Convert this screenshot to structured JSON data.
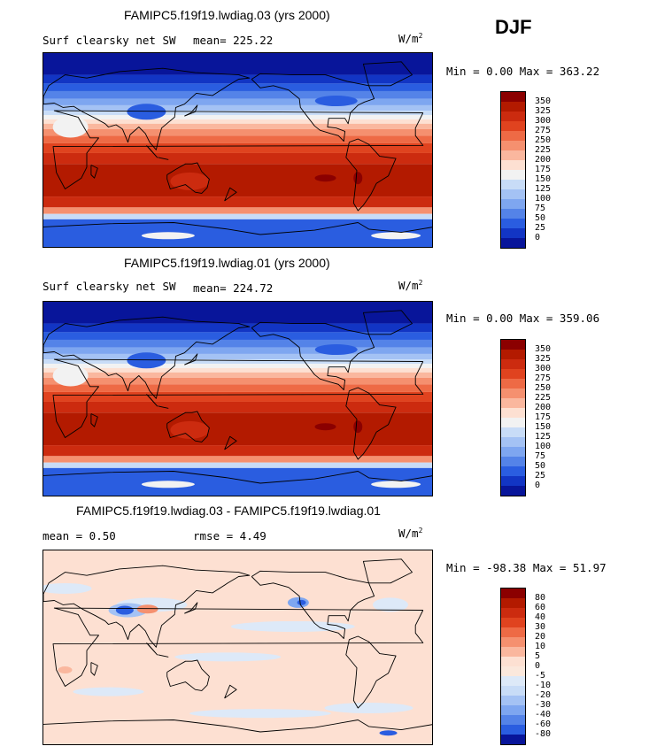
{
  "season": "DJF",
  "panels": [
    {
      "title": "FAMIPC5.f19f19.lwdiag.03 (yrs 2000)",
      "variable": "Surf clearsky net SW",
      "mean_text": "mean= 225.22",
      "units": "W/m",
      "units_exp": "2",
      "minmax": "Min =   0.00 Max = 363.22",
      "levels": [
        "350",
        "325",
        "300",
        "275",
        "250",
        "225",
        "200",
        "175",
        "150",
        "125",
        "100",
        "75",
        "50",
        "25",
        "0"
      ],
      "colors": [
        "#8b0000",
        "#b31a00",
        "#cc2b0f",
        "#e0431f",
        "#ee6a45",
        "#f5906f",
        "#fab79e",
        "#fde0d2",
        "#f2f2f2",
        "#c8dcf7",
        "#a4c2f4",
        "#7ea6f0",
        "#5483e8",
        "#2a5de0",
        "#1235c4",
        "#08159a"
      ],
      "field": "sw"
    },
    {
      "title": "FAMIPC5.f19f19.lwdiag.01 (yrs 2000)",
      "variable": "Surf clearsky net SW",
      "mean_text": "mean= 224.72",
      "units": "W/m",
      "units_exp": "2",
      "minmax": "Min =   0.00 Max = 359.06",
      "levels": [
        "350",
        "325",
        "300",
        "275",
        "250",
        "225",
        "200",
        "175",
        "150",
        "125",
        "100",
        "75",
        "50",
        "25",
        "0"
      ],
      "colors": [
        "#8b0000",
        "#b31a00",
        "#cc2b0f",
        "#e0431f",
        "#ee6a45",
        "#f5906f",
        "#fab79e",
        "#fde0d2",
        "#f2f2f2",
        "#c8dcf7",
        "#a4c2f4",
        "#7ea6f0",
        "#5483e8",
        "#2a5de0",
        "#1235c4",
        "#08159a"
      ],
      "field": "sw"
    },
    {
      "title": "FAMIPC5.f19f19.lwdiag.03 - FAMIPC5.f19f19.lwdiag.01",
      "mean_text": "mean =   0.50",
      "rmse_text": "rmse =   4.49",
      "units": "W/m",
      "units_exp": "2",
      "minmax": "Min = -98.38 Max =  51.97",
      "levels": [
        "80",
        "60",
        "40",
        "30",
        "20",
        "10",
        "5",
        "0",
        "-5",
        "-10",
        "-20",
        "-30",
        "-40",
        "-60",
        "-80"
      ],
      "colors": [
        "#8b0000",
        "#b31a00",
        "#cc2b0f",
        "#e0431f",
        "#ee6a45",
        "#f5906f",
        "#fab79e",
        "#fde0d2",
        "#fbe8dc",
        "#dde9f8",
        "#c8dcf7",
        "#a4c2f4",
        "#7ea6f0",
        "#5483e8",
        "#2a5de0",
        "#08159a"
      ],
      "field": "diff"
    }
  ],
  "chart_data": [
    {
      "type": "heatmap",
      "title": "FAMIPC5.f19f19.lwdiag.03 (yrs 2000)",
      "variable": "Surf clearsky net SW",
      "units": "W/m2",
      "mean": 225.22,
      "min": 0.0,
      "max": 363.22,
      "contour_levels": [
        0,
        25,
        50,
        75,
        100,
        125,
        150,
        175,
        200,
        225,
        250,
        275,
        300,
        325,
        350
      ]
    },
    {
      "type": "heatmap",
      "title": "FAMIPC5.f19f19.lwdiag.01 (yrs 2000)",
      "variable": "Surf clearsky net SW",
      "units": "W/m2",
      "mean": 224.72,
      "min": 0.0,
      "max": 359.06,
      "contour_levels": [
        0,
        25,
        50,
        75,
        100,
        125,
        150,
        175,
        200,
        225,
        250,
        275,
        300,
        325,
        350
      ]
    },
    {
      "type": "heatmap",
      "title": "FAMIPC5.f19f19.lwdiag.03 - FAMIPC5.f19f19.lwdiag.01",
      "units": "W/m2",
      "mean": 0.5,
      "rmse": 4.49,
      "min": -98.38,
      "max": 51.97,
      "contour_levels": [
        -80,
        -60,
        -40,
        -30,
        -20,
        -10,
        -5,
        0,
        5,
        10,
        20,
        30,
        40,
        60,
        80
      ]
    }
  ]
}
